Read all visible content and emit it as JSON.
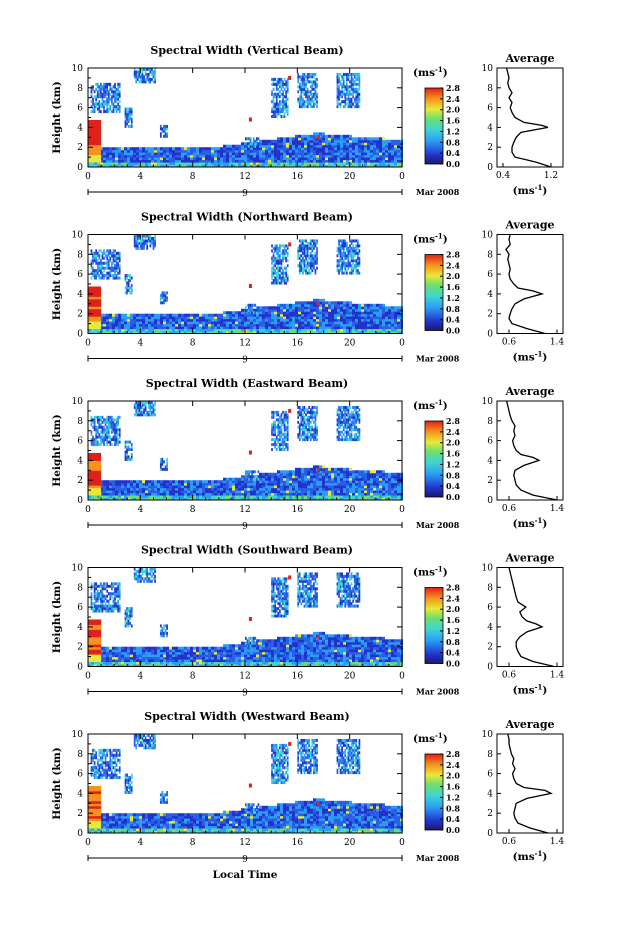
{
  "chart_data": {
    "type": "heatmap",
    "common": {
      "x_ticks": [
        "0",
        "4",
        "8",
        "12",
        "16",
        "20",
        "0"
      ],
      "x_range": [
        0,
        24
      ],
      "y_ticks": [
        "0",
        "2",
        "4",
        "6",
        "8",
        "10"
      ],
      "y_range": [
        0,
        10
      ],
      "ylabel": "Height (km)",
      "date_label": "9",
      "month_label": "Mar 2008",
      "xlabel": "Local Time",
      "colorbar_unit": "(ms",
      "colorbar_unit_sup": "-1",
      "colorbar_unit_close": ")",
      "colorbar_ticks": [
        "2.8",
        "2.4",
        "2.0",
        "1.6",
        "1.2",
        "0.8",
        "0.4",
        "0.0"
      ],
      "colorbar_range": [
        0,
        2.8
      ],
      "avg_title": "Average",
      "avg_xlabel": "(ms",
      "avg_xlabel_sup": "-1",
      "avg_xlabel_close": ")",
      "avg_y_ticks": [
        "0",
        "2",
        "4",
        "6",
        "8",
        "10"
      ]
    },
    "panels": [
      {
        "title": "Spectral Width (Vertical Beam)",
        "avg_x_ticks": [
          "0.4",
          "1.2"
        ],
        "avg_x_range": [
          0.3,
          1.4
        ],
        "avg_profile": [
          [
            0,
            1.2
          ],
          [
            0.5,
            0.95
          ],
          [
            1.0,
            0.6
          ],
          [
            1.5,
            0.55
          ],
          [
            2,
            0.55
          ],
          [
            2.5,
            0.58
          ],
          [
            3,
            0.62
          ],
          [
            3.5,
            0.7
          ],
          [
            4,
            1.15
          ],
          [
            4.2,
            1.05
          ],
          [
            4.5,
            0.75
          ],
          [
            5,
            0.6
          ],
          [
            5.5,
            0.55
          ],
          [
            6,
            0.52
          ],
          [
            6.5,
            0.55
          ],
          [
            7,
            0.5
          ],
          [
            7.5,
            0.55
          ],
          [
            8,
            0.5
          ],
          [
            8.5,
            0.48
          ],
          [
            9,
            0.5
          ],
          [
            9.5,
            0.48
          ],
          [
            10,
            0.46
          ]
        ]
      },
      {
        "title": "Spectral Width (Northward Beam)",
        "avg_x_ticks": [
          "0.6",
          "1.4"
        ],
        "avg_x_range": [
          0.4,
          1.5
        ],
        "avg_profile": [
          [
            0,
            1.2
          ],
          [
            0.5,
            0.9
          ],
          [
            1.0,
            0.65
          ],
          [
            1.5,
            0.6
          ],
          [
            2,
            0.62
          ],
          [
            2.5,
            0.65
          ],
          [
            3,
            0.7
          ],
          [
            3.5,
            0.85
          ],
          [
            4,
            1.15
          ],
          [
            4.3,
            1.0
          ],
          [
            4.6,
            0.75
          ],
          [
            5,
            0.68
          ],
          [
            5.5,
            0.62
          ],
          [
            6,
            0.6
          ],
          [
            6.5,
            0.62
          ],
          [
            7,
            0.6
          ],
          [
            7.5,
            0.58
          ],
          [
            8,
            0.6
          ],
          [
            8.5,
            0.55
          ],
          [
            9,
            0.62
          ],
          [
            9.5,
            0.6
          ],
          [
            10,
            0.62
          ]
        ]
      },
      {
        "title": "Spectral Width (Eastward Beam)",
        "avg_x_ticks": [
          "0.6",
          "1.4"
        ],
        "avg_x_range": [
          0.4,
          1.5
        ],
        "avg_profile": [
          [
            0,
            1.4
          ],
          [
            0.5,
            1.0
          ],
          [
            1.0,
            0.8
          ],
          [
            1.5,
            0.72
          ],
          [
            2,
            0.7
          ],
          [
            2.5,
            0.68
          ],
          [
            3,
            0.7
          ],
          [
            3.5,
            0.85
          ],
          [
            4,
            1.1
          ],
          [
            4.3,
            1.0
          ],
          [
            4.6,
            0.8
          ],
          [
            5,
            0.72
          ],
          [
            5.5,
            0.68
          ],
          [
            6,
            0.66
          ],
          [
            6.5,
            0.7
          ],
          [
            7,
            0.68
          ],
          [
            7.5,
            0.7
          ],
          [
            8,
            0.65
          ],
          [
            8.5,
            0.62
          ],
          [
            9,
            0.6
          ],
          [
            9.5,
            0.58
          ],
          [
            10,
            0.56
          ]
        ]
      },
      {
        "title": "Spectral Width (Southward Beam)",
        "avg_x_ticks": [
          "0.6",
          "1.4"
        ],
        "avg_x_range": [
          0.4,
          1.5
        ],
        "avg_profile": [
          [
            0,
            1.35
          ],
          [
            0.5,
            1.0
          ],
          [
            1.0,
            0.8
          ],
          [
            1.5,
            0.75
          ],
          [
            2,
            0.72
          ],
          [
            2.5,
            0.72
          ],
          [
            3,
            0.78
          ],
          [
            3.5,
            0.9
          ],
          [
            4,
            1.15
          ],
          [
            4.3,
            1.05
          ],
          [
            4.6,
            0.9
          ],
          [
            5,
            0.82
          ],
          [
            5.5,
            0.78
          ],
          [
            6,
            0.88
          ],
          [
            6.5,
            0.75
          ],
          [
            7,
            0.72
          ],
          [
            7.5,
            0.7
          ],
          [
            8,
            0.68
          ],
          [
            8.5,
            0.66
          ],
          [
            9,
            0.64
          ],
          [
            9.5,
            0.62
          ],
          [
            10,
            0.6
          ]
        ]
      },
      {
        "title": "Spectral Width (Westward Beam)",
        "avg_x_ticks": [
          "0.6",
          "1.4"
        ],
        "avg_x_range": [
          0.4,
          1.5
        ],
        "avg_profile": [
          [
            0,
            1.25
          ],
          [
            0.5,
            0.95
          ],
          [
            1.0,
            0.75
          ],
          [
            1.5,
            0.7
          ],
          [
            2,
            0.68
          ],
          [
            2.5,
            0.7
          ],
          [
            3,
            0.72
          ],
          [
            3.5,
            0.9
          ],
          [
            4,
            1.3
          ],
          [
            4.3,
            1.2
          ],
          [
            4.6,
            0.85
          ],
          [
            5,
            0.72
          ],
          [
            5.5,
            0.68
          ],
          [
            6,
            0.66
          ],
          [
            6.5,
            0.7
          ],
          [
            7,
            0.66
          ],
          [
            7.5,
            0.68
          ],
          [
            8,
            0.64
          ],
          [
            8.5,
            0.62
          ],
          [
            9,
            0.6
          ],
          [
            9.5,
            0.6
          ],
          [
            10,
            0.58
          ]
        ]
      }
    ]
  }
}
